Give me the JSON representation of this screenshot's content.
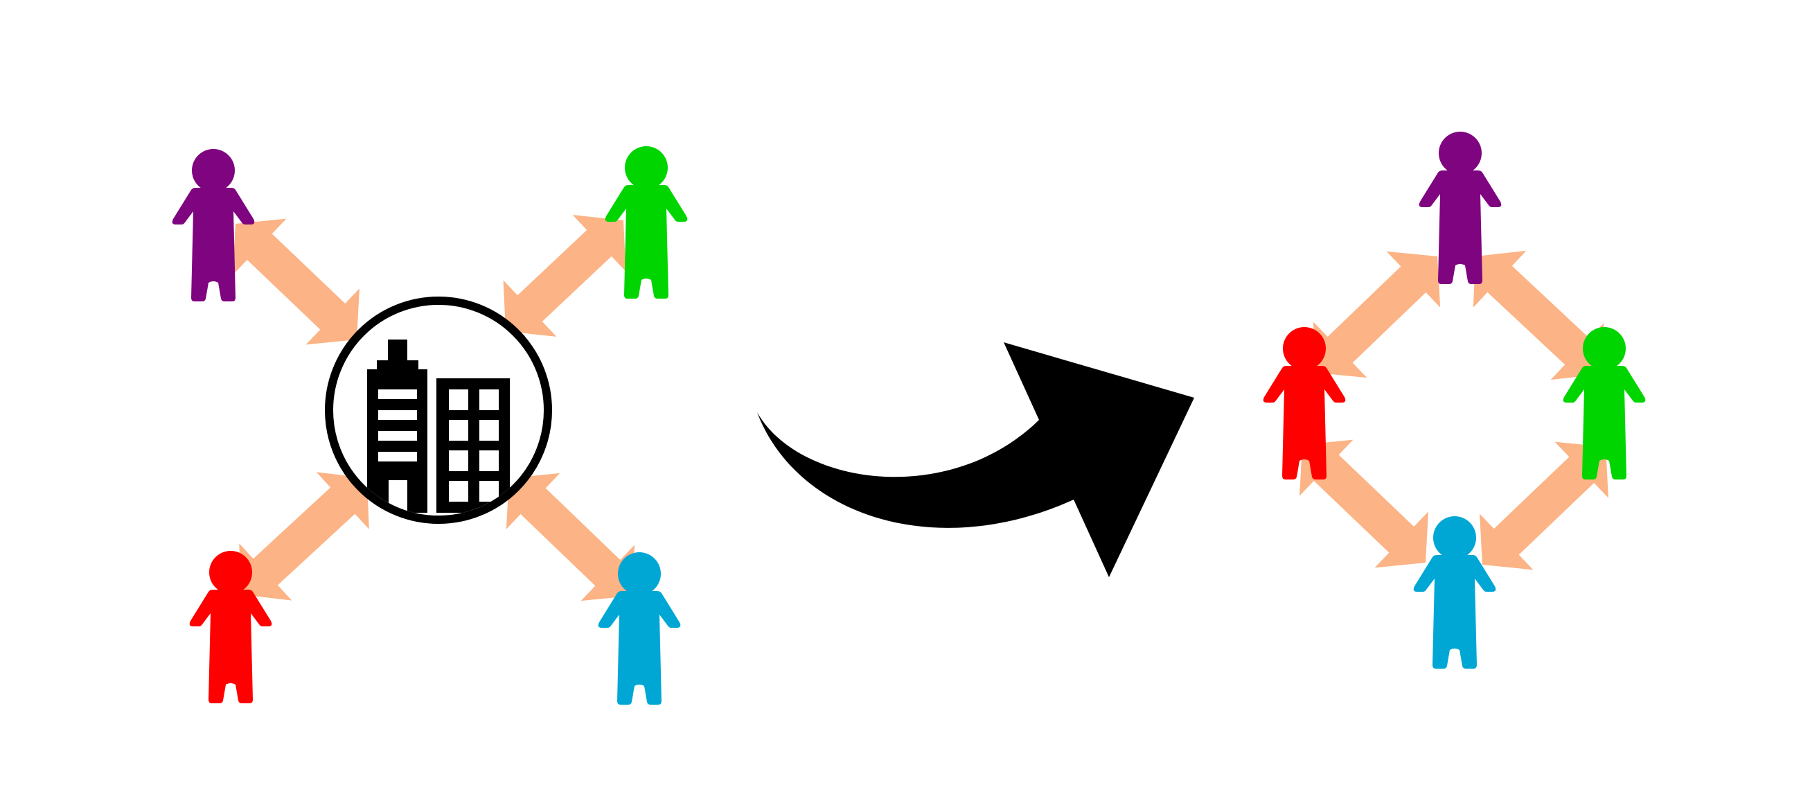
{
  "colors": {
    "background": "#ffffff",
    "connector": "#FCB385",
    "outline": "#000000",
    "transition_arrow": "#000000"
  },
  "centralized": {
    "hub_icon": "office-buildings-icon",
    "people": [
      {
        "id": "purple",
        "color": "#7F047F",
        "icon": "person-icon"
      },
      {
        "id": "green",
        "color": "#00D500",
        "icon": "person-icon"
      },
      {
        "id": "red",
        "color": "#FF0000",
        "icon": "person-icon"
      },
      {
        "id": "blue",
        "color": "#00A7D5",
        "icon": "person-icon"
      }
    ]
  },
  "transition": {
    "icon": "curved-right-arrow-icon"
  },
  "decentralized": {
    "people": [
      {
        "id": "purple",
        "color": "#7F047F",
        "icon": "person-icon"
      },
      {
        "id": "green",
        "color": "#00D500",
        "icon": "person-icon"
      },
      {
        "id": "red",
        "color": "#FF0000",
        "icon": "person-icon"
      },
      {
        "id": "blue",
        "color": "#00A7D5",
        "icon": "person-icon"
      }
    ]
  }
}
